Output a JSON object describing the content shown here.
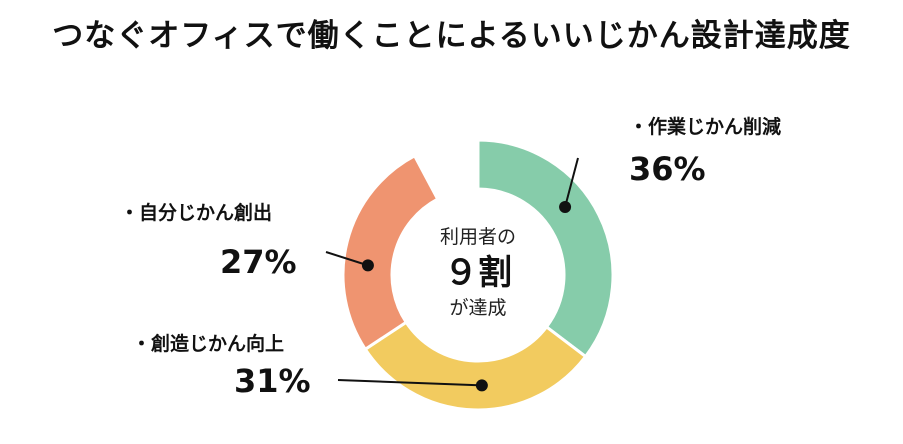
{
  "title": "つなぐオフィスで働くことによるいいじかん設計達成度",
  "center": {
    "line1": "利用者の",
    "line2": "９割",
    "line3": "が達成"
  },
  "chart_data": {
    "type": "pie",
    "title": "つなぐオフィスで働くことによるいいじかん設計達成度",
    "unit": "%",
    "categories": [
      "作業じかん削減",
      "創造じかん向上",
      "自分じかん創出"
    ],
    "values": [
      36,
      31,
      27
    ],
    "series": [
      {
        "name": "作業じかん削減",
        "value": 36,
        "label": "36%",
        "color": "#86ccaa"
      },
      {
        "name": "創造じかん向上",
        "value": 31,
        "label": "31%",
        "color": "#f2cb5f"
      },
      {
        "name": "自分じかん創出",
        "value": 27,
        "label": "27%",
        "color": "#ef9470"
      }
    ],
    "bullet": "・"
  }
}
